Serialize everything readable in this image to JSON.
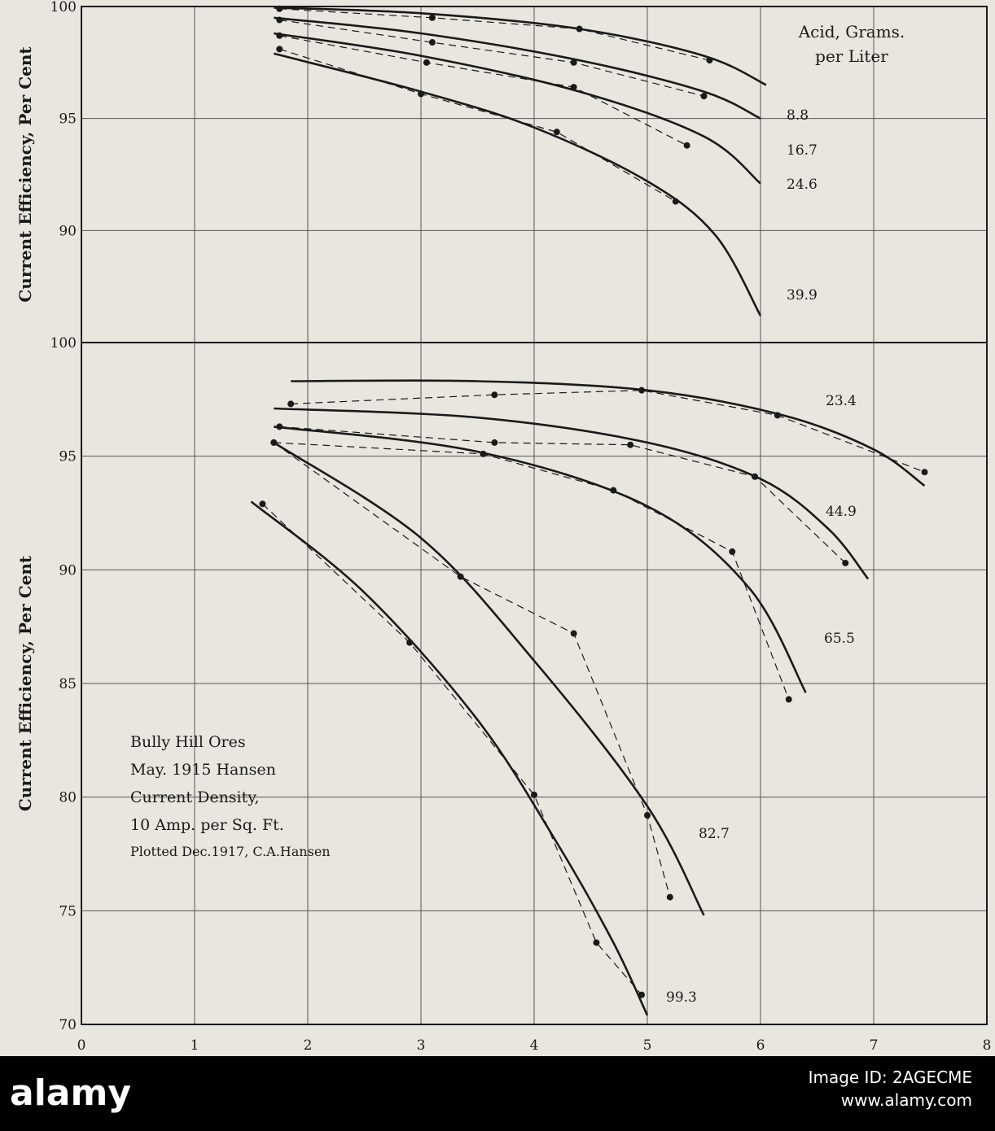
{
  "chart_data": [
    {
      "type": "line",
      "ylabel": "Current Efficiency, Per Cent",
      "xlim": [
        0,
        8
      ],
      "ylim": [
        85,
        100
      ],
      "yticks": [
        90,
        95,
        100
      ],
      "grid": true,
      "legend_title": "Acid, Grams. per Liter",
      "series": [
        {
          "name": "8.8",
          "points": [
            [
              1.75,
              99.9
            ],
            [
              3.1,
              99.5
            ],
            [
              4.4,
              99.0
            ],
            [
              5.55,
              97.6
            ]
          ],
          "curve": [
            [
              1.7,
              99.95
            ],
            [
              3.0,
              99.7
            ],
            [
              4.4,
              99.0
            ],
            [
              5.5,
              97.8
            ],
            [
              6.05,
              96.5
            ]
          ]
        },
        {
          "name": "16.7",
          "points": [
            [
              1.75,
              99.4
            ],
            [
              3.1,
              98.4
            ],
            [
              4.35,
              97.5
            ],
            [
              5.5,
              96.0
            ]
          ],
          "curve": [
            [
              1.7,
              99.5
            ],
            [
              3.0,
              98.8
            ],
            [
              4.4,
              97.6
            ],
            [
              5.5,
              96.2
            ],
            [
              6.0,
              95.0
            ]
          ]
        },
        {
          "name": "24.6",
          "points": [
            [
              1.75,
              98.7
            ],
            [
              3.05,
              97.5
            ],
            [
              4.35,
              96.4
            ],
            [
              5.35,
              93.8
            ]
          ],
          "curve": [
            [
              1.7,
              98.8
            ],
            [
              3.0,
              97.8
            ],
            [
              4.4,
              96.2
            ],
            [
              5.5,
              94.2
            ],
            [
              6.0,
              92.1
            ]
          ]
        },
        {
          "name": "39.9",
          "points": [
            [
              1.75,
              98.1
            ],
            [
              3.0,
              96.1
            ],
            [
              4.2,
              94.4
            ],
            [
              5.25,
              91.3
            ]
          ],
          "curve": [
            [
              1.7,
              97.9
            ],
            [
              3.0,
              96.2
            ],
            [
              4.0,
              94.6
            ],
            [
              5.0,
              92.2
            ],
            [
              5.6,
              89.8
            ],
            [
              6.0,
              86.2
            ]
          ]
        }
      ]
    },
    {
      "type": "line",
      "ylabel": "Current Efficiency, Per Cent",
      "xlim": [
        0,
        8
      ],
      "xticks": [
        0,
        1,
        2,
        3,
        4,
        5,
        6,
        7,
        8
      ],
      "ylim": [
        70,
        100
      ],
      "yticks": [
        70,
        75,
        80,
        85,
        90,
        95,
        100
      ],
      "grid": true,
      "series": [
        {
          "name": "23.4",
          "points": [
            [
              1.85,
              97.3
            ],
            [
              3.65,
              97.7
            ],
            [
              4.95,
              97.9
            ],
            [
              6.15,
              96.8
            ],
            [
              7.45,
              94.3
            ]
          ],
          "curve": [
            [
              1.85,
              98.3
            ],
            [
              3.5,
              98.3
            ],
            [
              5.0,
              97.9
            ],
            [
              6.2,
              96.8
            ],
            [
              7.0,
              95.3
            ],
            [
              7.45,
              93.7
            ]
          ]
        },
        {
          "name": "44.9",
          "points": [
            [
              1.75,
              96.3
            ],
            [
              3.65,
              95.6
            ],
            [
              4.85,
              95.5
            ],
            [
              5.95,
              94.1
            ],
            [
              6.75,
              90.3
            ]
          ],
          "curve": [
            [
              1.7,
              97.1
            ],
            [
              3.5,
              96.7
            ],
            [
              5.0,
              95.6
            ],
            [
              6.0,
              94.0
            ],
            [
              6.6,
              91.8
            ],
            [
              6.95,
              89.6
            ]
          ]
        },
        {
          "name": "65.5",
          "points": [
            [
              1.7,
              95.6
            ],
            [
              3.55,
              95.1
            ],
            [
              4.7,
              93.5
            ],
            [
              5.75,
              90.8
            ],
            [
              6.25,
              84.3
            ]
          ],
          "curve": [
            [
              1.7,
              96.3
            ],
            [
              3.5,
              95.2
            ],
            [
              5.0,
              92.8
            ],
            [
              5.9,
              89.2
            ],
            [
              6.4,
              84.6
            ]
          ]
        },
        {
          "name": "82.7",
          "points": [
            [
              1.7,
              95.6
            ],
            [
              3.35,
              89.7
            ],
            [
              4.35,
              87.2
            ],
            [
              5.0,
              79.2
            ],
            [
              5.2,
              75.6
            ]
          ],
          "curve": [
            [
              1.7,
              95.6
            ],
            [
              3.0,
              91.4
            ],
            [
              4.0,
              86.0
            ],
            [
              5.0,
              79.6
            ],
            [
              5.5,
              74.8
            ]
          ]
        },
        {
          "name": "99.3",
          "points": [
            [
              1.6,
              92.9
            ],
            [
              2.9,
              86.8
            ],
            [
              4.0,
              80.1
            ],
            [
              4.55,
              73.6
            ],
            [
              4.95,
              71.3
            ]
          ],
          "curve": [
            [
              1.5,
              93.0
            ],
            [
              2.5,
              89.0
            ],
            [
              3.5,
              83.4
            ],
            [
              4.2,
              78.0
            ],
            [
              4.7,
              73.6
            ],
            [
              5.0,
              70.4
            ]
          ]
        }
      ]
    }
  ],
  "annotation": {
    "line1": "Bully Hill Ores",
    "line2": "May. 1915 Hansen",
    "line3": "Current Density,",
    "line4": "10 Amp. per Sq. Ft.",
    "line5": "Plotted Dec.1917, C.A.Hansen"
  },
  "watermark": {
    "logo": "alamy",
    "image_id": "Image ID: 2AGECME",
    "site": "www.alamy.com"
  },
  "colors": {
    "background": "#e9e6df",
    "ink": "#1a1a1a",
    "grid": "#555555"
  }
}
